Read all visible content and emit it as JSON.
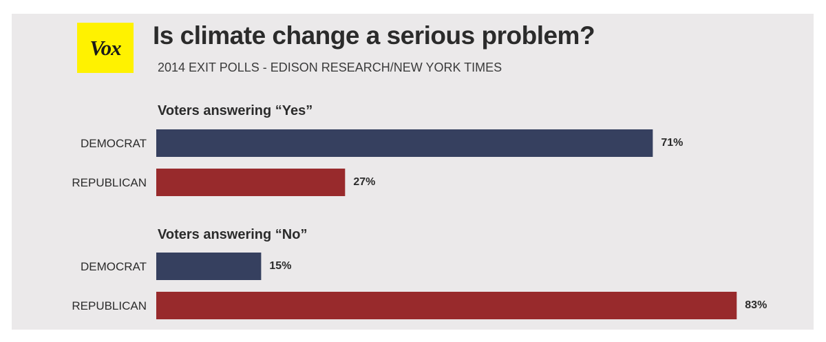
{
  "logo": {
    "text": "Vox",
    "background": "#fff200"
  },
  "title": "Is climate change a serious problem?",
  "subtitle": "2014 EXIT POLLS - EDISON RESEARCH/NEW YORK TIMES",
  "colors": {
    "democrat": "#36405f",
    "republican": "#982a2c",
    "background": "#ebe9ea"
  },
  "chart_data": {
    "type": "bar",
    "orientation": "horizontal",
    "xlim": [
      0,
      83
    ],
    "groups": [
      {
        "title": "Voters answering “Yes”",
        "bars": [
          {
            "category": "DEMOCRAT",
            "value": 71,
            "label": "71%"
          },
          {
            "category": "REPUBLICAN",
            "value": 27,
            "label": "27%"
          }
        ]
      },
      {
        "title": "Voters answering “No”",
        "bars": [
          {
            "category": "DEMOCRAT",
            "value": 15,
            "label": "15%"
          },
          {
            "category": "REPUBLICAN",
            "value": 83,
            "label": "83%"
          }
        ]
      }
    ]
  }
}
